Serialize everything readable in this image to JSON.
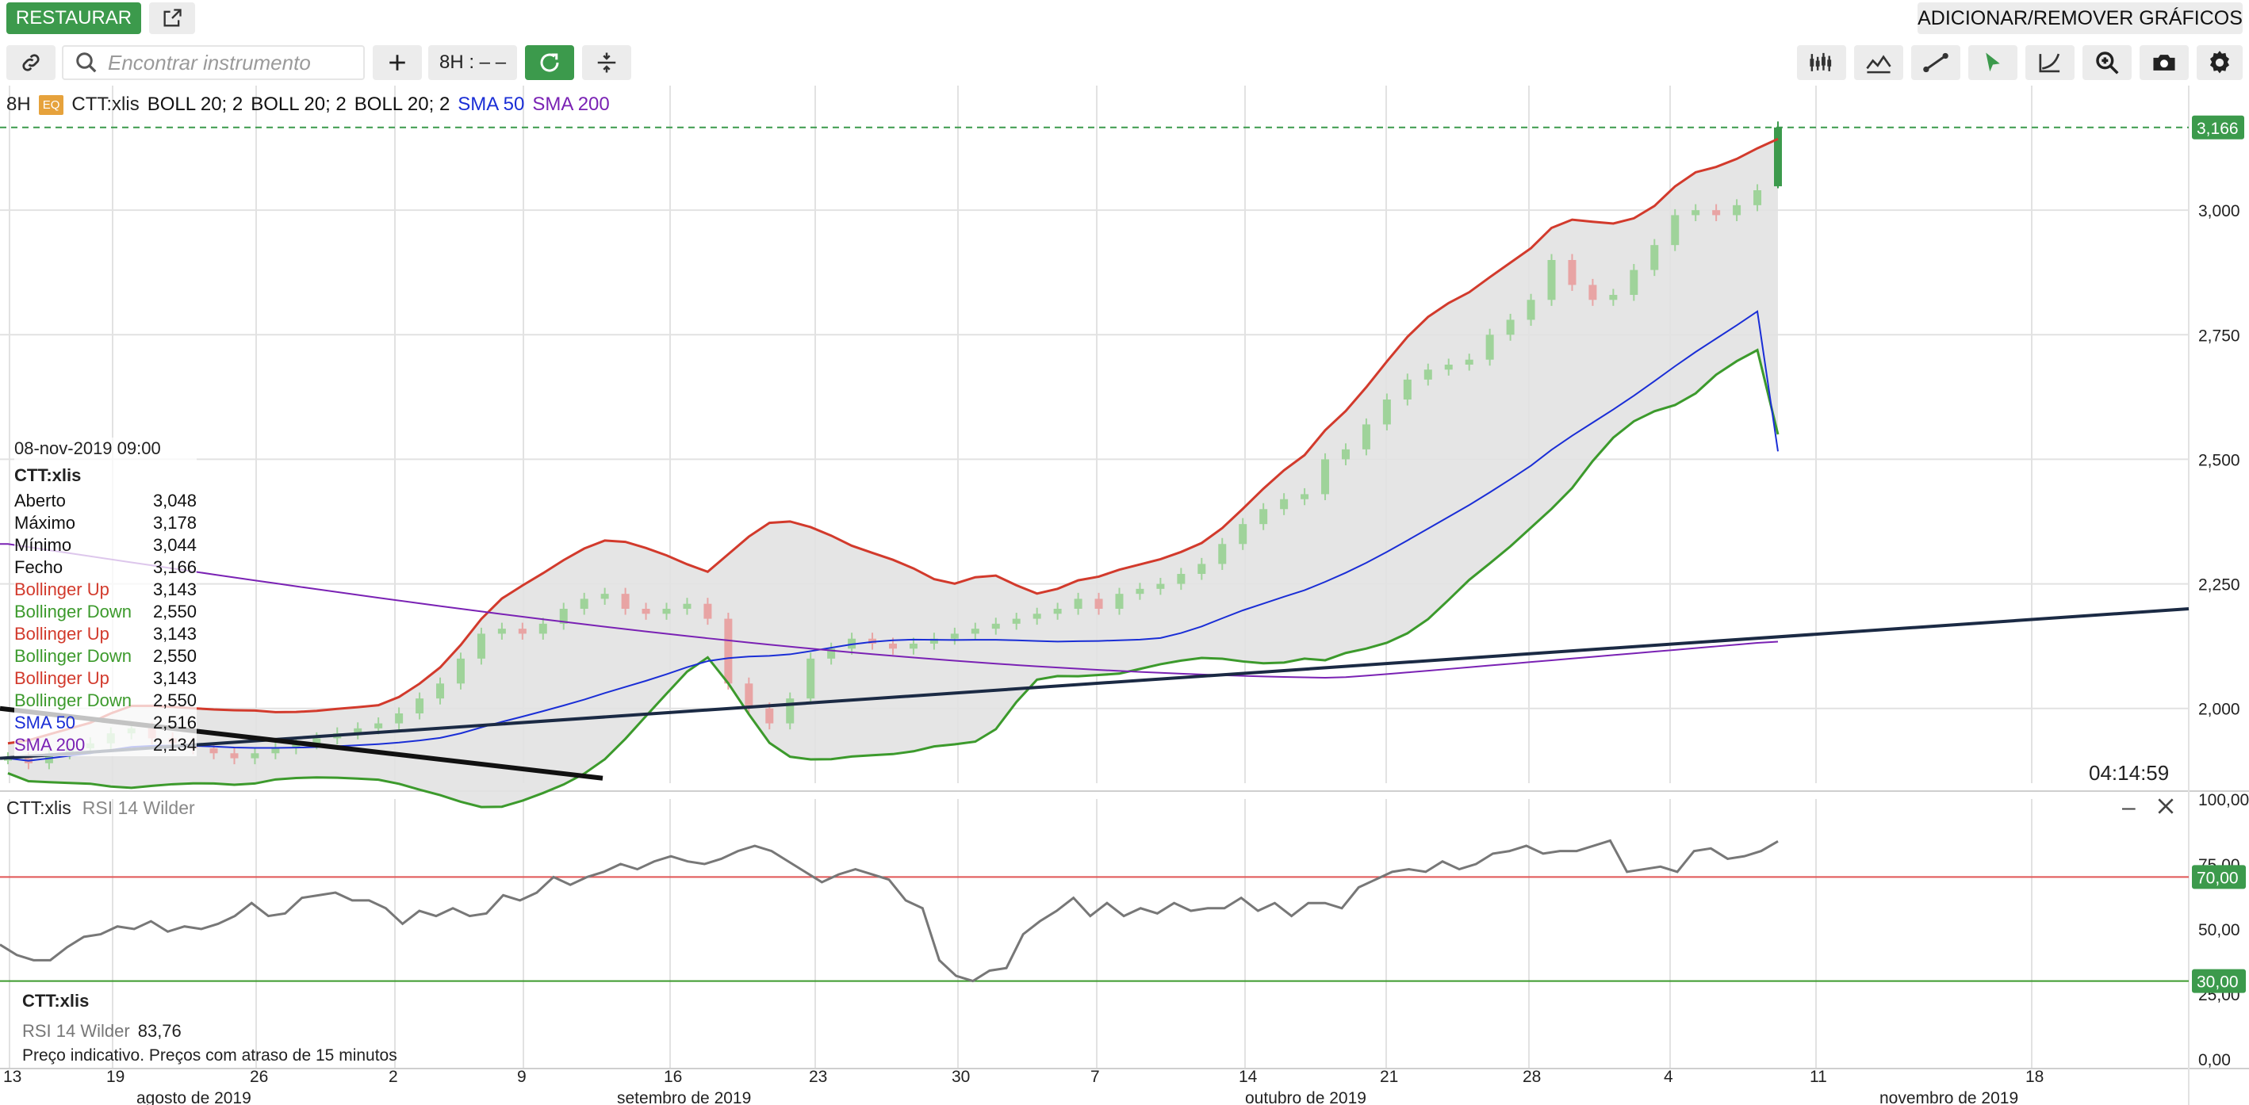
{
  "toolbar": {
    "restore_label": "RESTAURAR",
    "add_remove_label": "ADICIONAR/REMOVER GRÁFICOS",
    "search_placeholder": "Encontrar instrumento",
    "timeframe_label": "8H : – –"
  },
  "chart_header": {
    "interval": "8H",
    "badge": "EQ",
    "symbol": "CTT:xlis",
    "indicators": [
      {
        "label": "BOLL 20; 2",
        "color": "#111111"
      },
      {
        "label": "BOLL 20; 2",
        "color": "#111111"
      },
      {
        "label": "BOLL 20; 2",
        "color": "#111111"
      },
      {
        "label": "SMA 50",
        "color": "#1a2ed6"
      },
      {
        "label": "SMA 200",
        "color": "#7a22b4"
      }
    ]
  },
  "price_axis": {
    "ticks": [
      "3,000",
      "2,750",
      "2,500",
      "2,250",
      "2,000"
    ],
    "last_price_tag": "3,166",
    "last_price_color": "#3c9a4c",
    "countdown": "04:14:59"
  },
  "data_panel": {
    "datetime": "08-nov-2019 09:00",
    "symbol": "CTT:xlis",
    "rows": [
      {
        "label": "Aberto",
        "value": "3,048",
        "color": "#111111"
      },
      {
        "label": "Máximo",
        "value": "3,178",
        "color": "#111111"
      },
      {
        "label": "Mínimo",
        "value": "3,044",
        "color": "#111111"
      },
      {
        "label": "Fecho",
        "value": "3,166",
        "color": "#111111"
      },
      {
        "label": "Bollinger Up",
        "value": "3,143",
        "color": "#d23a2c"
      },
      {
        "label": "Bollinger Down",
        "value": "2,550",
        "color": "#3c9a2c"
      },
      {
        "label": "Bollinger Up",
        "value": "3,143",
        "color": "#d23a2c"
      },
      {
        "label": "Bollinger Down",
        "value": "2,550",
        "color": "#3c9a2c"
      },
      {
        "label": "Bollinger Up",
        "value": "3,143",
        "color": "#d23a2c"
      },
      {
        "label": "Bollinger Down",
        "value": "2,550",
        "color": "#3c9a2c"
      },
      {
        "label": "SMA 50",
        "value": "2,516",
        "color": "#1a2ed6"
      },
      {
        "label": "SMA 200",
        "value": "2,134",
        "color": "#7a22b4"
      }
    ]
  },
  "rsi_panel": {
    "symbol": "CTT:xlis",
    "indicator": "RSI 14 Wilder",
    "ticks": [
      "100,00",
      "75,00",
      "50,00",
      "25,00",
      "0,00"
    ],
    "upper_tag": "70,00",
    "lower_tag": "30,00",
    "info_symbol": "CTT:xlis",
    "info_label": "RSI 14 Wilder",
    "info_value": "83,76",
    "disclaimer": "Preço indicativo. Preços com atraso de 15 minutos"
  },
  "date_axis": {
    "day_ticks": [
      "13",
      "19",
      "26",
      "2",
      "9",
      "16",
      "23",
      "30",
      "7",
      "14",
      "21",
      "28",
      "4",
      "11",
      "18"
    ],
    "month_labels": [
      "agosto de 2019",
      "setembro de 2019",
      "outubro de 2019",
      "novembro de 2019"
    ]
  },
  "chart_data": {
    "type": "candlestick",
    "interval": "8H",
    "ylim": [
      1.85,
      3.25
    ],
    "rsi_ylim": [
      0,
      100
    ],
    "last_candle": {
      "open": 3.048,
      "high": 3.178,
      "low": 3.044,
      "close": 3.166
    },
    "sma50_last": 2.516,
    "sma200_last": 2.134,
    "bollinger_up_last": 3.143,
    "bollinger_down_last": 2.55,
    "rsi_last": 83.76,
    "rsi_levels": [
      70,
      30
    ],
    "close_series": [
      1.9,
      1.89,
      1.91,
      1.92,
      1.93,
      1.95,
      1.96,
      1.94,
      1.93,
      1.92,
      1.91,
      1.9,
      1.91,
      1.92,
      1.93,
      1.94,
      1.95,
      1.96,
      1.97,
      1.99,
      2.02,
      2.05,
      2.1,
      2.15,
      2.16,
      2.15,
      2.17,
      2.2,
      2.22,
      2.23,
      2.2,
      2.19,
      2.2,
      2.21,
      2.18,
      2.05,
      2.0,
      1.97,
      2.02,
      2.1,
      2.12,
      2.14,
      2.13,
      2.12,
      2.13,
      2.14,
      2.15,
      2.16,
      2.17,
      2.18,
      2.19,
      2.2,
      2.22,
      2.2,
      2.23,
      2.24,
      2.25,
      2.27,
      2.29,
      2.33,
      2.37,
      2.4,
      2.42,
      2.43,
      2.5,
      2.52,
      2.57,
      2.62,
      2.66,
      2.68,
      2.69,
      2.7,
      2.75,
      2.78,
      2.82,
      2.9,
      2.85,
      2.82,
      2.83,
      2.88,
      2.93,
      2.99,
      3.0,
      2.99,
      3.01,
      3.04,
      3.166
    ],
    "rsi_series": [
      44,
      40,
      38,
      38,
      43,
      47,
      48,
      51,
      50,
      53,
      49,
      51,
      50,
      52,
      55,
      60,
      55,
      56,
      62,
      63,
      64,
      61,
      61,
      58,
      52,
      57,
      55,
      58,
      55,
      56,
      63,
      61,
      64,
      70,
      67,
      70,
      72,
      75,
      73,
      76,
      78,
      76,
      75,
      77,
      80,
      82,
      80,
      76,
      72,
      68,
      71,
      73,
      71,
      69,
      61,
      58,
      38,
      32,
      30,
      34,
      35,
      48,
      53,
      57,
      62,
      55,
      60,
      55,
      58,
      56,
      60,
      57,
      58,
      58,
      62,
      57,
      60,
      55,
      60,
      60,
      58,
      66,
      69,
      72,
      73,
      72,
      76,
      73,
      75,
      79,
      80,
      82,
      79,
      80,
      80,
      82,
      84,
      72,
      73,
      74,
      72,
      80,
      81,
      77,
      78,
      80,
      83.76
    ]
  }
}
